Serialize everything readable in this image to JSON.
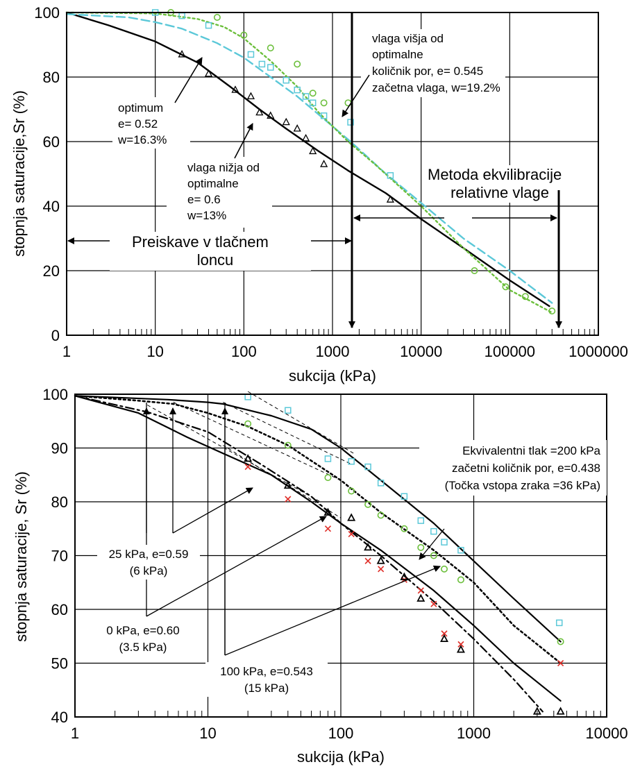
{
  "chart_data": [
    {
      "type": "line",
      "xscale": "log",
      "xlabel": "sukcija (kPa)",
      "ylabel": "stopnja saturacije,Sr (%)",
      "xlim": [
        1,
        1000000
      ],
      "ylim": [
        0,
        100
      ],
      "xticks": [
        1,
        10,
        100,
        1000,
        10000,
        100000,
        1000000
      ],
      "xtick_labels": [
        "1",
        "10",
        "100",
        "1000",
        "10000",
        "100000",
        "1000000"
      ],
      "yticks": [
        0,
        20,
        40,
        60,
        80,
        100
      ],
      "ytick_labels": [
        "0",
        "20",
        "40",
        "60",
        "80",
        "100"
      ],
      "grid": true,
      "colors": {
        "dry": "#000000",
        "optimum": "#5bc8d8",
        "wet": "#6cbf3c"
      },
      "series": [
        {
          "id": "dry",
          "style": "solid",
          "marker": "triangle",
          "curve": [
            [
              1,
              100
            ],
            [
              3,
              96
            ],
            [
              10,
              91
            ],
            [
              30,
              84.5
            ],
            [
              70,
              77
            ],
            [
              150,
              70
            ],
            [
              300,
              64
            ],
            [
              700,
              57
            ],
            [
              1500,
              51
            ],
            [
              4000,
              44
            ],
            [
              10000,
              36
            ],
            [
              30000,
              27
            ],
            [
              100000,
              17
            ],
            [
              280000,
              9
            ]
          ],
          "points": [
            [
              20,
              87
            ],
            [
              40,
              81
            ],
            [
              80,
              76
            ],
            [
              120,
              74
            ],
            [
              150,
              69
            ],
            [
              200,
              68
            ],
            [
              300,
              66
            ],
            [
              400,
              64
            ],
            [
              500,
              61
            ],
            [
              600,
              57
            ],
            [
              800,
              53
            ],
            [
              4500,
              42
            ]
          ]
        },
        {
          "id": "optimum",
          "style": "dashed",
          "marker": "square",
          "curve": [
            [
              1,
              99.5
            ],
            [
              5,
              98.5
            ],
            [
              10,
              97
            ],
            [
              20,
              95
            ],
            [
              50,
              90.5
            ],
            [
              100,
              86
            ],
            [
              200,
              80
            ],
            [
              400,
              74
            ],
            [
              800,
              67
            ],
            [
              1600,
              60
            ],
            [
              4000,
              50
            ],
            [
              10000,
              41
            ],
            [
              30000,
              30
            ],
            [
              100000,
              20
            ],
            [
              300000,
              10
            ]
          ],
          "points": [
            [
              10,
              100
            ],
            [
              20,
              99
            ],
            [
              40,
              96
            ],
            [
              120,
              87
            ],
            [
              160,
              84
            ],
            [
              200,
              83
            ],
            [
              300,
              79
            ],
            [
              400,
              76
            ],
            [
              500,
              74
            ],
            [
              600,
              72
            ],
            [
              800,
              68
            ],
            [
              1600,
              66
            ],
            [
              4500,
              49.5
            ]
          ]
        },
        {
          "id": "wet",
          "style": "dotted",
          "marker": "circle",
          "curve": [
            [
              1,
              100
            ],
            [
              10,
              99.7
            ],
            [
              30,
              98
            ],
            [
              60,
              95.5
            ],
            [
              100,
              92
            ],
            [
              200,
              85
            ],
            [
              400,
              77
            ],
            [
              700,
              69
            ],
            [
              1500,
              60
            ],
            [
              3000,
              53
            ],
            [
              10000,
              40
            ],
            [
              30000,
              27
            ],
            [
              100000,
              14
            ],
            [
              300000,
              7
            ]
          ],
          "points": [
            [
              15,
              100
            ],
            [
              50,
              98.5
            ],
            [
              100,
              93
            ],
            [
              200,
              89
            ],
            [
              400,
              84
            ],
            [
              600,
              75
            ],
            [
              800,
              72
            ],
            [
              1500,
              72
            ],
            [
              40000,
              20
            ],
            [
              90000,
              15
            ],
            [
              150000,
              12
            ],
            [
              300000,
              7.5
            ]
          ]
        }
      ],
      "annotations": {
        "optimum": [
          "optimum",
          "e= 0.52",
          "w=16.3%"
        ],
        "dry": [
          "vlaga nižja od",
          "optimalne",
          "e= 0.6",
          "w=13%"
        ],
        "wet": [
          "vlaga višja od",
          "optimalne",
          "količnik por, e= 0.545",
          "začetna vlaga, w=19.2%"
        ],
        "pressure_plate": [
          "Preiskave v tlačnem",
          "loncu"
        ],
        "rh_method": [
          "Metoda ekvilibracije",
          "relativne vlage"
        ]
      }
    },
    {
      "type": "line",
      "xscale": "log",
      "xlabel": "sukcija (kPa)",
      "ylabel": "stopnja saturacije, Sr (%)",
      "xlim": [
        1,
        10000
      ],
      "ylim": [
        40,
        100
      ],
      "xticks": [
        1,
        10,
        100,
        1000,
        10000
      ],
      "xtick_labels": [
        "1",
        "10",
        "100",
        "1000",
        "10000"
      ],
      "yticks": [
        40,
        50,
        60,
        70,
        80,
        90,
        100
      ],
      "ytick_labels": [
        "40",
        "50",
        "60",
        "70",
        "80",
        "90",
        "100"
      ],
      "grid": true,
      "colors": {
        "square": "#5bc8d8",
        "circle": "#6cbf3c",
        "cross": "#e0302a",
        "triangle": "#000000"
      },
      "curves": [
        {
          "id": "ekv200",
          "style": "solid",
          "points": [
            [
              1,
              99.7
            ],
            [
              5,
              99
            ],
            [
              10,
              98.5
            ],
            [
              13,
              98.2
            ],
            [
              30,
              96
            ],
            [
              60,
              93.5
            ],
            [
              100,
              90
            ],
            [
              200,
              84
            ],
            [
              500,
              76
            ],
            [
              1000,
              69
            ],
            [
              2000,
              62
            ],
            [
              4500,
              54
            ]
          ]
        },
        {
          "id": "kpa25",
          "style": "dotted",
          "points": [
            [
              1,
              99.7
            ],
            [
              3,
              98.8
            ],
            [
              5.5,
              98.2
            ],
            [
              10,
              96.5
            ],
            [
              20,
              94
            ],
            [
              40,
              90.5
            ],
            [
              100,
              84
            ],
            [
              200,
              78
            ],
            [
              500,
              71
            ],
            [
              1000,
              65
            ],
            [
              2000,
              57
            ],
            [
              4500,
              50
            ]
          ]
        },
        {
          "id": "kpa100",
          "style": "solid",
          "points": [
            [
              1,
              99.7
            ],
            [
              3,
              96.5
            ],
            [
              7,
              92
            ],
            [
              13,
              89
            ],
            [
              30,
              85
            ],
            [
              60,
              80
            ],
            [
              100,
              76
            ],
            [
              200,
              71
            ],
            [
              500,
              63.5
            ],
            [
              1000,
              57
            ],
            [
              2000,
              50
            ],
            [
              4500,
              43
            ]
          ]
        },
        {
          "id": "kpa0",
          "style": "dashdot",
          "points": [
            [
              1,
              99.7
            ],
            [
              3.5,
              96.7
            ],
            [
              10,
              93
            ],
            [
              25,
              87
            ],
            [
              60,
              81
            ],
            [
              100,
              76
            ],
            [
              200,
              70
            ],
            [
              500,
              61.5
            ],
            [
              1000,
              54.5
            ],
            [
              2000,
              47
            ],
            [
              3300,
              41
            ]
          ]
        }
      ],
      "tangents": [
        [
          [
            13,
            98.5
          ],
          [
            120,
            87
          ]
        ],
        [
          [
            5.5,
            98.5
          ],
          [
            100,
            84
          ]
        ],
        [
          [
            3.5,
            98
          ],
          [
            70,
            80
          ]
        ],
        [
          [
            13,
            90.5
          ],
          [
            100,
            77
          ]
        ],
        [
          [
            20,
            100.5
          ],
          [
            125,
            89
          ]
        ]
      ],
      "markers": {
        "square": [
          [
            20,
            99.5
          ],
          [
            40,
            97
          ],
          [
            80,
            88
          ],
          [
            120,
            87.5
          ],
          [
            160,
            86.5
          ],
          [
            200,
            83.5
          ],
          [
            300,
            81
          ],
          [
            400,
            76.5
          ],
          [
            500,
            74.5
          ],
          [
            600,
            72.5
          ],
          [
            800,
            71
          ],
          [
            4400,
            57.5
          ]
        ],
        "circle": [
          [
            20,
            94.5
          ],
          [
            40,
            90.5
          ],
          [
            80,
            84.5
          ],
          [
            120,
            82
          ],
          [
            160,
            79.5
          ],
          [
            200,
            77.5
          ],
          [
            300,
            75
          ],
          [
            400,
            71.5
          ],
          [
            500,
            70
          ],
          [
            600,
            67.5
          ],
          [
            800,
            65.5
          ],
          [
            4500,
            54
          ]
        ],
        "cross": [
          [
            20,
            86.5
          ],
          [
            40,
            80.5
          ],
          [
            80,
            75
          ],
          [
            120,
            74
          ],
          [
            160,
            69
          ],
          [
            200,
            67.5
          ],
          [
            300,
            65.5
          ],
          [
            400,
            63.5
          ],
          [
            500,
            61
          ],
          [
            600,
            55.5
          ],
          [
            800,
            53.5
          ],
          [
            4500,
            50
          ]
        ],
        "triangle": [
          [
            20,
            88
          ],
          [
            40,
            83
          ],
          [
            80,
            78
          ],
          [
            120,
            77
          ],
          [
            160,
            71.5
          ],
          [
            200,
            69
          ],
          [
            300,
            66
          ],
          [
            400,
            62
          ],
          [
            600,
            54.5
          ],
          [
            800,
            52.5
          ],
          [
            3000,
            41
          ],
          [
            4500,
            41
          ]
        ]
      },
      "annotations": {
        "equivalent": [
          "Ekvivalentni tlak =200 kPa",
          "začetni količnik por, e=0.438",
          "(Točka vstopa zraka =36 kPa)"
        ],
        "kpa25": [
          "25 kPa, e=0.59",
          "(6 kPa)"
        ],
        "kpa0": [
          "0 kPa, e=0.60",
          "(3.5 kPa)"
        ],
        "kpa100": [
          "100 kPa, e=0.543",
          "(15 kPa)"
        ]
      }
    }
  ]
}
